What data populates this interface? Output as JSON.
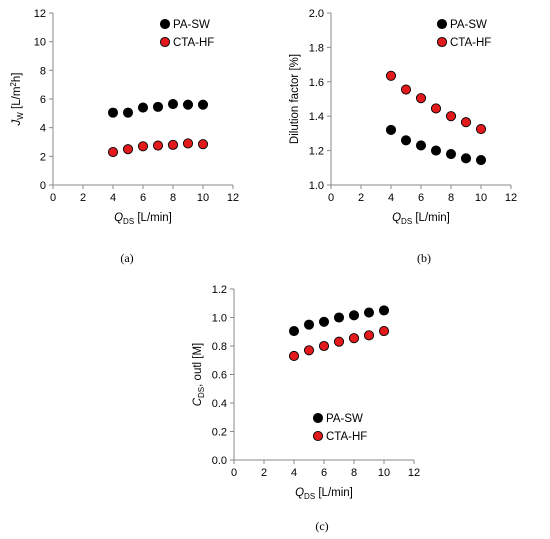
{
  "chart_data": [
    {
      "type": "scatter",
      "panel_label": "(a)",
      "xlim": [
        0,
        12
      ],
      "xticks": [
        0,
        2,
        4,
        6,
        8,
        10,
        12
      ],
      "ylim": [
        0,
        12
      ],
      "yticks": [
        0,
        2,
        4,
        6,
        8,
        10,
        12
      ],
      "ytick_decimals": 0,
      "xlabel": {
        "main": "Q",
        "sub": "DS",
        "rest": " [L/min]"
      },
      "ylabel": {
        "main": "J",
        "sub": "W",
        "rest": " [L/m",
        "sup": "2",
        "tail": "h]"
      },
      "legend_position": "top-right",
      "series": [
        {
          "name": "PA-SW",
          "color": "#000000",
          "x": [
            4,
            5,
            6,
            7,
            8,
            9,
            10
          ],
          "y": [
            5.05,
            5.05,
            5.4,
            5.45,
            5.65,
            5.6,
            5.6
          ]
        },
        {
          "name": "CTA-HF",
          "color": "#e31a1c",
          "x": [
            4,
            5,
            6,
            7,
            8,
            9,
            10
          ],
          "y": [
            2.3,
            2.5,
            2.7,
            2.75,
            2.8,
            2.9,
            2.85
          ]
        }
      ]
    },
    {
      "type": "scatter",
      "panel_label": "(b)",
      "xlim": [
        0,
        12
      ],
      "xticks": [
        0,
        2,
        4,
        6,
        8,
        10,
        12
      ],
      "ylim": [
        1.0,
        2.0
      ],
      "yticks": [
        1.0,
        1.2,
        1.4,
        1.6,
        1.8,
        2.0
      ],
      "ytick_decimals": 1,
      "xlabel": {
        "main": "Q",
        "sub": "DS",
        "rest": " [L/min]"
      },
      "ylabel": {
        "main": "Dilution factor [%]",
        "sub": "",
        "rest": ""
      },
      "legend_position": "top-right",
      "series": [
        {
          "name": "PA-SW",
          "color": "#000000",
          "x": [
            4,
            5,
            6,
            7,
            8,
            9,
            10
          ],
          "y": [
            1.32,
            1.26,
            1.23,
            1.2,
            1.18,
            1.155,
            1.145
          ]
        },
        {
          "name": "CTA-HF",
          "color": "#e31a1c",
          "x": [
            4,
            5,
            6,
            7,
            8,
            9,
            10
          ],
          "y": [
            1.635,
            1.555,
            1.505,
            1.445,
            1.4,
            1.365,
            1.325
          ]
        }
      ]
    },
    {
      "type": "scatter",
      "panel_label": "(c)",
      "xlim": [
        0,
        12
      ],
      "xticks": [
        0,
        2,
        4,
        6,
        8,
        10,
        12
      ],
      "ylim": [
        0,
        1.2
      ],
      "yticks": [
        0,
        0.2,
        0.4,
        0.6,
        0.8,
        1.0,
        1.2
      ],
      "ytick_decimals": 1,
      "xlabel": {
        "main": "Q",
        "sub": "DS",
        "rest": " [L/min]"
      },
      "ylabel": {
        "main": "C",
        "sub": "DS",
        "rest": ", outl [M]"
      },
      "legend_position": "bottom-right",
      "series": [
        {
          "name": "PA-SW",
          "color": "#000000",
          "x": [
            4,
            5,
            6,
            7,
            8,
            9,
            10
          ],
          "y": [
            0.905,
            0.95,
            0.97,
            1.0,
            1.015,
            1.035,
            1.05
          ]
        },
        {
          "name": "CTA-HF",
          "color": "#e31a1c",
          "x": [
            4,
            5,
            6,
            7,
            8,
            9,
            10
          ],
          "y": [
            0.73,
            0.77,
            0.8,
            0.83,
            0.855,
            0.875,
            0.905
          ]
        }
      ]
    }
  ]
}
